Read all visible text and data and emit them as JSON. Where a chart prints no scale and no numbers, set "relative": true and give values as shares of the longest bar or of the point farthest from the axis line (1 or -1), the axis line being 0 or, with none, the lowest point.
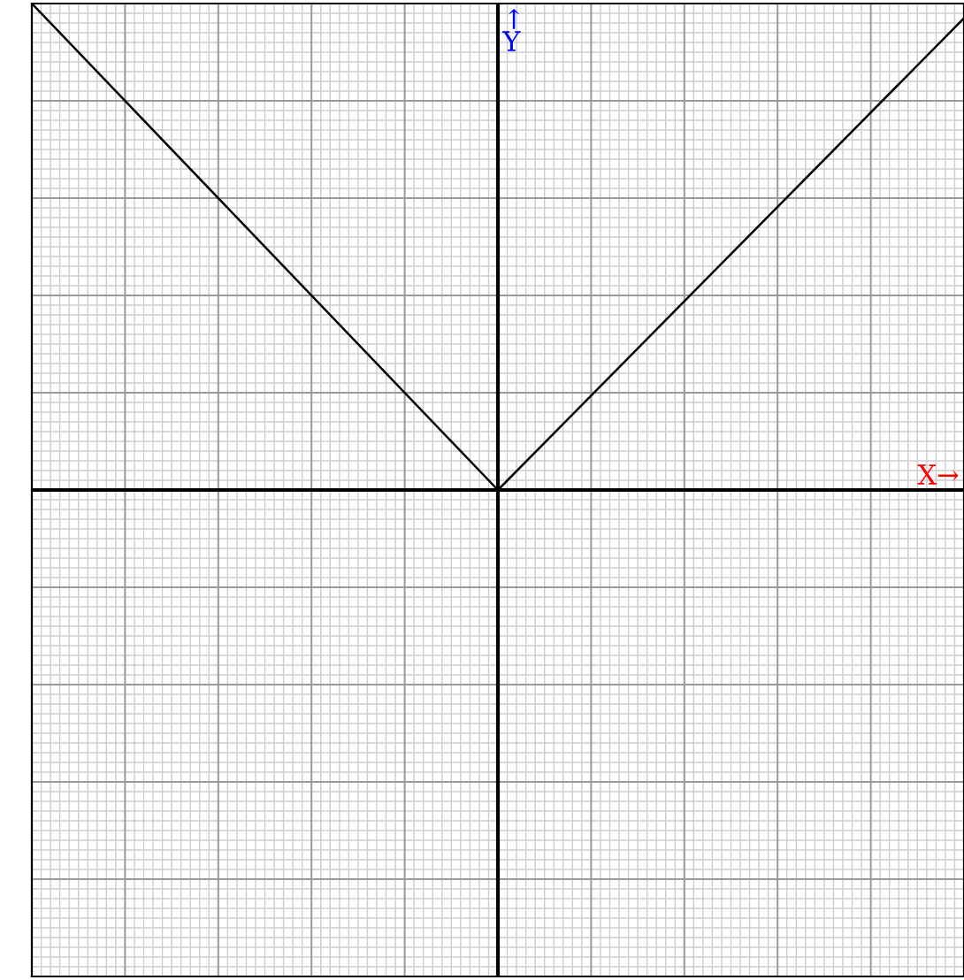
{
  "chart_data": {
    "type": "line",
    "relative": true,
    "categories": [
      null,
      null,
      null
    ],
    "series": [
      {
        "color": "#000000",
        "values": [
          1,
          0,
          0.97
        ]
      }
    ],
    "xlabel": "X→",
    "ylabel": "↑\nY",
    "grid": true,
    "marker": "none",
    "line_style": "solid"
  }
}
